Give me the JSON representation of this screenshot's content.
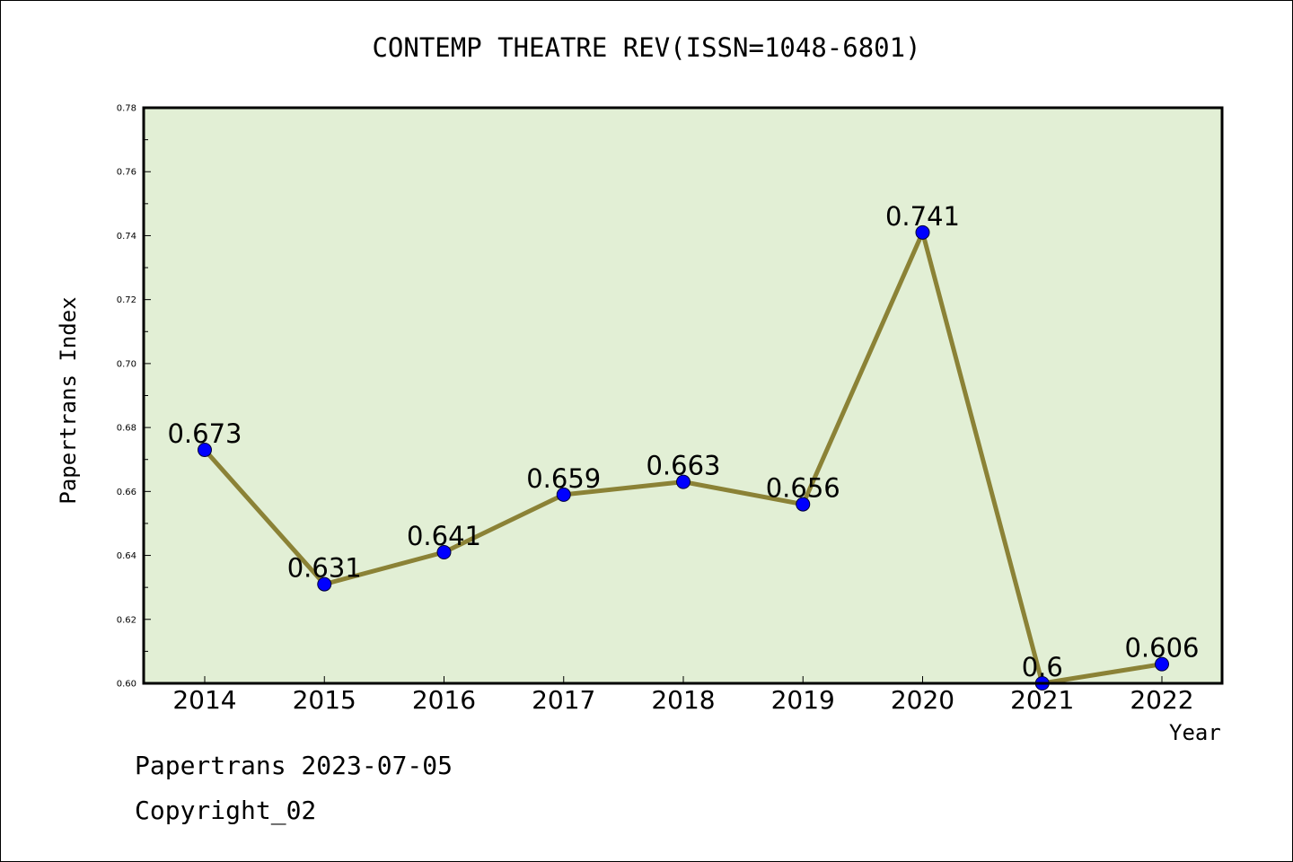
{
  "chart_data": {
    "type": "line",
    "title": "CONTEMP THEATRE REV(ISSN=1048-6801)",
    "xlabel": "Year",
    "ylabel": "Papertrans Index",
    "categories": [
      "2014",
      "2015",
      "2016",
      "2017",
      "2018",
      "2019",
      "2020",
      "2021",
      "2022"
    ],
    "values": [
      0.673,
      0.631,
      0.641,
      0.659,
      0.663,
      0.656,
      0.741,
      0.6,
      0.606
    ],
    "value_labels": [
      "0.673",
      "0.631",
      "0.641",
      "0.659",
      "0.663",
      "0.656",
      "0.741",
      "0.6",
      "0.606"
    ],
    "ylim": [
      0.6,
      0.78
    ],
    "yticks": [
      "0.60",
      "0.62",
      "0.64",
      "0.66",
      "0.68",
      "0.70",
      "0.72",
      "0.74",
      "0.76",
      "0.78"
    ],
    "grid": false,
    "colors": {
      "plot_background": "#e2efd5",
      "line": "#8b8236",
      "marker": "#0000ff"
    }
  },
  "footer": {
    "line1": "Papertrans 2023-07-05",
    "line2": "Copyright_02"
  }
}
